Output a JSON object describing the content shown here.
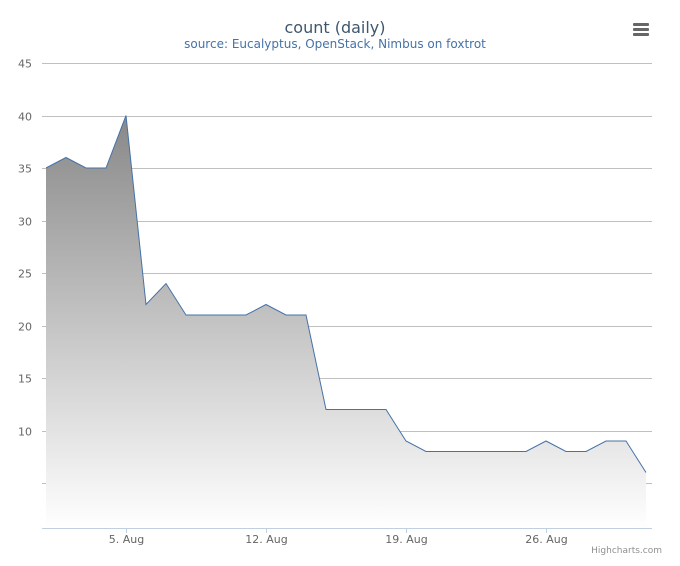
{
  "chart_data": {
    "type": "area",
    "title": "count (daily)",
    "subtitle": "source: Eucalyptus, OpenStack, Nimbus on foxtrot",
    "xlabel": "",
    "ylabel": "",
    "x_start": "2013-08-01",
    "x_end": "2013-08-31",
    "x_tick_labels": [
      "5. Aug",
      "12. Aug",
      "19. Aug",
      "26. Aug"
    ],
    "x_tick_dates": [
      "2013-08-05",
      "2013-08-12",
      "2013-08-19",
      "2013-08-26"
    ],
    "ylim": [
      0,
      45
    ],
    "y_ticks": [
      5,
      10,
      15,
      20,
      25,
      30,
      35,
      40,
      45
    ],
    "y_tick_labels": [
      "",
      "10",
      "15",
      "20",
      "25",
      "30",
      "35",
      "40",
      "45"
    ],
    "grid": true,
    "legend": "none",
    "series": [
      {
        "x": [
          "2013-08-01",
          "2013-08-02",
          "2013-08-03",
          "2013-08-04",
          "2013-08-05",
          "2013-08-06",
          "2013-08-07",
          "2013-08-08",
          "2013-08-09",
          "2013-08-10",
          "2013-08-11",
          "2013-08-12",
          "2013-08-13",
          "2013-08-14",
          "2013-08-15",
          "2013-08-16",
          "2013-08-17",
          "2013-08-18",
          "2013-08-19",
          "2013-08-20",
          "2013-08-21",
          "2013-08-22",
          "2013-08-23",
          "2013-08-24",
          "2013-08-25",
          "2013-08-26",
          "2013-08-27",
          "2013-08-28",
          "2013-08-29",
          "2013-08-30",
          "2013-08-31"
        ],
        "values": [
          35,
          36,
          35,
          35,
          40,
          22,
          24,
          21,
          21,
          21,
          21,
          22,
          21,
          21,
          12,
          12,
          12,
          12,
          9,
          8,
          8,
          8,
          8,
          8,
          8,
          9,
          8,
          8,
          9,
          9,
          6
        ],
        "line_color": "#4572A7",
        "fill_top": "#888888",
        "fill_bottom": "#ffffff"
      }
    ]
  },
  "menu": {
    "icon": "hamburger-menu-icon"
  },
  "credits": "Highcharts.com"
}
